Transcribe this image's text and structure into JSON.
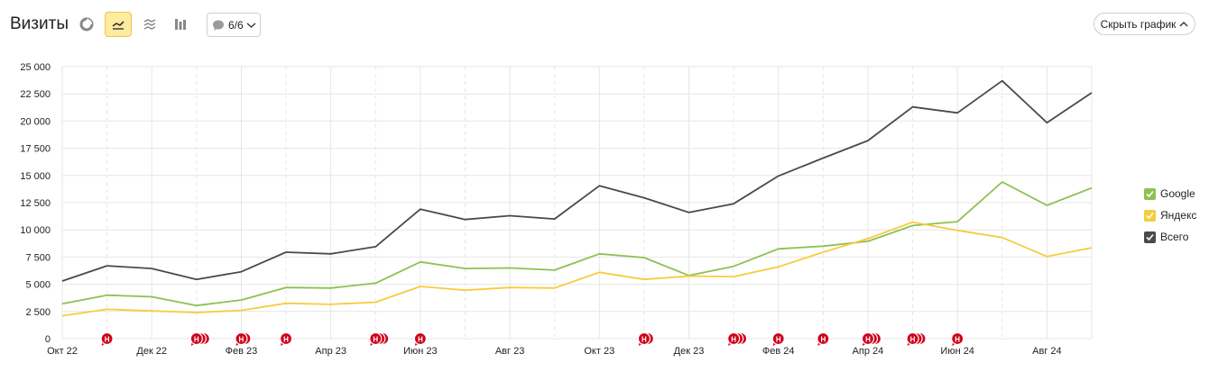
{
  "header": {
    "title": "Визиты",
    "annotations_label": "6/6",
    "hide_chart_label": "Скрыть график"
  },
  "toolbar": {
    "icons": [
      "pie-chart-icon",
      "line-chart-icon",
      "area-chart-icon",
      "bar-chart-icon",
      "comment-icon",
      "chevron-down-icon",
      "chevron-up-icon",
      "check-icon"
    ],
    "active": "line-chart-icon"
  },
  "colors": {
    "google": "#8cc152",
    "yandex": "#f7cc3c",
    "total": "#4a4a4a",
    "grid": "#e6e6e6",
    "annotation": "#d0021b",
    "active_tool": "#ffeba0"
  },
  "chart_data": {
    "type": "line",
    "x": [
      "Окт 22",
      "Ноя 22",
      "Дек 22",
      "Янв 23",
      "Фев 23",
      "Мар 23",
      "Апр 23",
      "Май 23",
      "Июн 23",
      "Июл 23",
      "Авг 23",
      "Сен 23",
      "Окт 23",
      "Ноя 23",
      "Дек 23",
      "Янв 24",
      "Фев 24",
      "Мар 24",
      "Апр 24",
      "Май 24",
      "Июн 24",
      "Июл 24",
      "Авг 24",
      "Сен 24"
    ],
    "x_tick_labels": [
      "Окт 22",
      "Дек 22",
      "Фев 23",
      "Апр 23",
      "Июн 23",
      "Авг 23",
      "Окт 23",
      "Дек 23",
      "Фев 24",
      "Апр 24",
      "Июн 24",
      "Авг 24"
    ],
    "series": [
      {
        "name": "Google",
        "color": "#8cc152",
        "values": [
          3200,
          4000,
          3850,
          3050,
          3550,
          4700,
          4650,
          5100,
          7050,
          6450,
          6500,
          6300,
          7800,
          7450,
          5800,
          6650,
          8250,
          8500,
          8950,
          10400,
          10750,
          14400,
          12250,
          13850
        ]
      },
      {
        "name": "Яндекс",
        "color": "#f7cc3c",
        "values": [
          2100,
          2700,
          2550,
          2400,
          2600,
          3250,
          3150,
          3350,
          4800,
          4450,
          4700,
          4650,
          6100,
          5450,
          5750,
          5700,
          6600,
          7950,
          9200,
          10700,
          9950,
          9300,
          7550,
          8350
        ]
      },
      {
        "name": "Всего",
        "color": "#4a4a4a",
        "values": [
          5300,
          6700,
          6450,
          5450,
          6150,
          7950,
          7800,
          8450,
          11900,
          10950,
          11300,
          11000,
          14050,
          12950,
          11600,
          12400,
          14950,
          16600,
          18200,
          21300,
          20750,
          23700,
          19850,
          22600
        ]
      }
    ],
    "ylim": [
      0,
      25000
    ],
    "y_ticks": [
      0,
      2500,
      5000,
      7500,
      10000,
      12500,
      15000,
      17500,
      20000,
      22500,
      25000
    ],
    "y_tick_labels": [
      "0",
      "2 500",
      "5 000",
      "7 500",
      "10 000",
      "12 500",
      "15 000",
      "17 500",
      "20 000",
      "22 500",
      "25 000"
    ],
    "legend": "right",
    "grid": true,
    "annotations": [
      {
        "x": "Ноя 22",
        "label": "Н",
        "count": 1
      },
      {
        "x": "Янв 23",
        "label": "Н",
        "count": 3
      },
      {
        "x": "Фев 23",
        "label": "Н",
        "count": 2
      },
      {
        "x": "Мар 23",
        "label": "Н",
        "count": 1
      },
      {
        "x": "Май 23",
        "label": "Н",
        "count": 3
      },
      {
        "x": "Июн 23",
        "label": "Н",
        "count": 1
      },
      {
        "x": "Ноя 23",
        "label": "Н",
        "count": 2
      },
      {
        "x": "Янв 24",
        "label": "Н",
        "count": 3
      },
      {
        "x": "Фев 24",
        "label": "Н",
        "count": 1
      },
      {
        "x": "Мар 24",
        "label": "Н",
        "count": 1
      },
      {
        "x": "Апр 24",
        "label": "Н",
        "count": 3
      },
      {
        "x": "Май 24",
        "label": "Н",
        "count": 3
      },
      {
        "x": "Июн 24",
        "label": "Н",
        "count": 1
      }
    ]
  }
}
